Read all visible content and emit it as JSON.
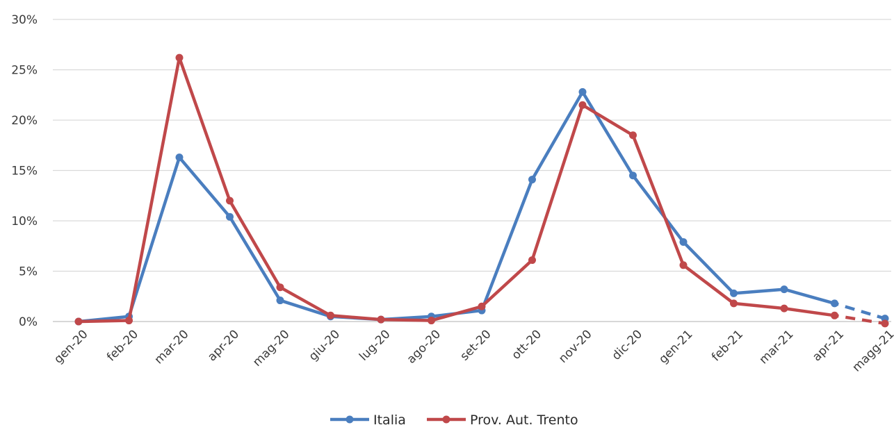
{
  "chart_data": {
    "type": "line",
    "title": "",
    "xlabel": "",
    "ylabel": "",
    "categories": [
      "gen-20",
      "feb-20",
      "mar-20",
      "apr-20",
      "mag-20",
      "giu-20",
      "lug-20",
      "ago-20",
      "set-20",
      "ott-20",
      "nov-20",
      "dic-20",
      "gen-21",
      "feb-21",
      "mar-21",
      "apr-21",
      "magg-21"
    ],
    "y_ticks": [
      "0%",
      "5%",
      "10%",
      "15%",
      "20%",
      "25%",
      "30%"
    ],
    "ylim": [
      0,
      30
    ],
    "y_unit": "%",
    "grid": "horizontal",
    "legend_position": "bottom-center",
    "series": [
      {
        "name": "Italia",
        "color": "#4a7ebf",
        "values": [
          0.0,
          0.5,
          16.3,
          10.4,
          2.1,
          0.5,
          0.2,
          0.5,
          1.1,
          14.1,
          22.8,
          14.5,
          7.9,
          2.8,
          3.2,
          1.8,
          0.3
        ],
        "dashed_last_segment": true
      },
      {
        "name": "Prov. Aut. Trento",
        "color": "#c0484a",
        "values": [
          0.0,
          0.1,
          26.2,
          12.0,
          3.4,
          0.6,
          0.2,
          0.1,
          1.5,
          6.1,
          21.5,
          18.5,
          5.6,
          1.8,
          1.3,
          0.6,
          -0.2
        ],
        "dashed_last_segment": true
      }
    ]
  }
}
